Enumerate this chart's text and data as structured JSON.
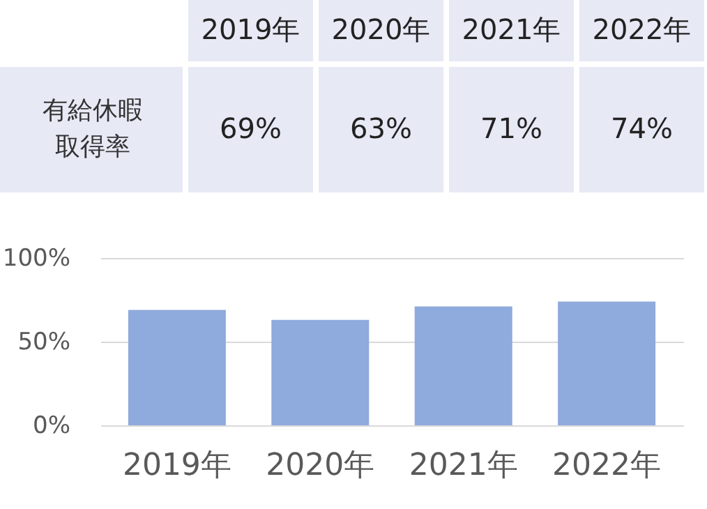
{
  "chart_data": {
    "type": "bar",
    "categories": [
      "2019年",
      "2020年",
      "2021年",
      "2022年"
    ],
    "series": [
      {
        "name": "有給休暇取得率",
        "color": "#8faadc",
        "values": [
          69,
          63,
          71,
          74
        ]
      }
    ],
    "value_labels": [
      "69%",
      "63%",
      "71%",
      "74%"
    ],
    "ylim": [
      0,
      100
    ],
    "yticks": [
      {
        "value": 0,
        "label": "0%"
      },
      {
        "value": 50,
        "label": "50%"
      },
      {
        "value": 100,
        "label": "100%"
      }
    ],
    "grid": "y"
  }
}
